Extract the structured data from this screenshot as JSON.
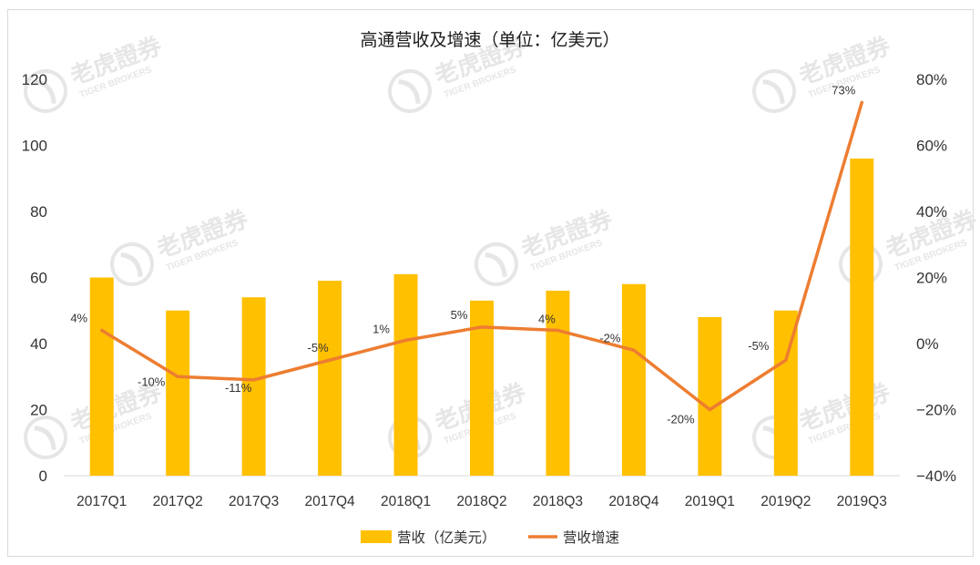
{
  "chart_data": {
    "type": "bar",
    "title": "高通营收及增速（单位：亿美元）",
    "categories": [
      "2017Q1",
      "2017Q2",
      "2017Q3",
      "2017Q4",
      "2018Q1",
      "2018Q2",
      "2018Q3",
      "2018Q4",
      "2019Q1",
      "2019Q2",
      "2019Q3"
    ],
    "series": [
      {
        "name": "营收（亿美元）",
        "type": "bar",
        "axis": "left",
        "color": "#FFC000",
        "values": [
          60,
          50,
          54,
          59,
          61,
          53,
          56,
          58,
          48,
          50,
          96
        ]
      },
      {
        "name": "营收增速",
        "type": "line",
        "axis": "right",
        "color": "#ED7D31",
        "values": [
          4,
          -10,
          -11,
          -5,
          1,
          5,
          4,
          -2,
          -20,
          -5,
          73
        ],
        "labels": [
          "4%",
          "-10%",
          "-11%",
          "-5%",
          "1%",
          "5%",
          "4%",
          "-2%",
          "-20%",
          "-5%",
          "73%"
        ]
      }
    ],
    "y_left": {
      "min": 0,
      "max": 120,
      "ticks": [
        "0",
        "20",
        "40",
        "60",
        "80",
        "100",
        "120"
      ]
    },
    "y_right": {
      "min": -40,
      "max": 80,
      "ticks": [
        "−40%",
        "−20%",
        "0%",
        "20%",
        "40%",
        "60%",
        "80%"
      ]
    },
    "grid": false,
    "legend_position": "bottom",
    "legend": [
      "营收（亿美元）",
      "营收增速"
    ],
    "watermark": {
      "text": "老虎證券",
      "subtext": "TIGER BROKERS"
    }
  }
}
